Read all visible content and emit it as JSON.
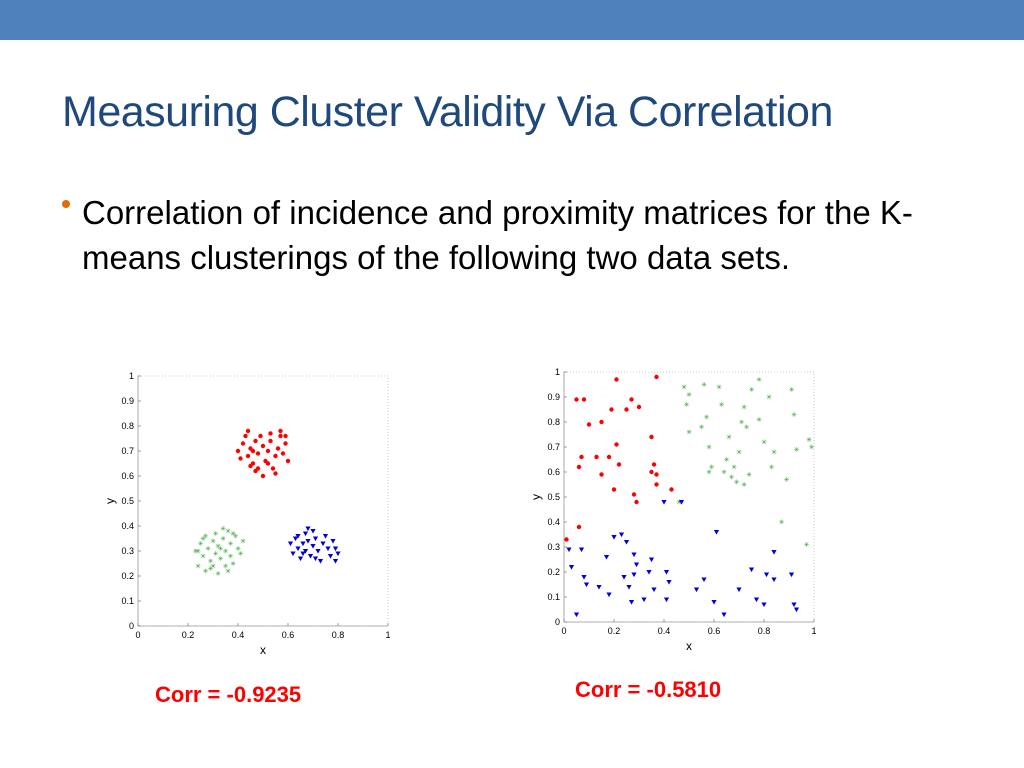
{
  "slide": {
    "title": "Measuring Cluster Validity Via Correlation",
    "bullet": "Correlation of incidence and proximity matrices for the K-means clusterings of the following two data sets.",
    "accent_color": "#4f81bd",
    "title_color": "#1f497d",
    "bullet_color": "#e36c09"
  },
  "chart_data": [
    {
      "type": "scatter",
      "title": "",
      "xlabel": "x",
      "ylabel": "y",
      "xlim": [
        0,
        1
      ],
      "ylim": [
        0,
        1
      ],
      "xticks": [
        "0",
        "0.2",
        "0.4",
        "0.6",
        "0.8",
        "1"
      ],
      "yticks": [
        "0",
        "0.1",
        "0.2",
        "0.3",
        "0.4",
        "0.5",
        "0.6",
        "0.7",
        "0.8",
        "0.9",
        "1"
      ],
      "annotation": "Corr = -0.9235",
      "series": [
        {
          "marker": "dot",
          "color": "#ff0000",
          "points": [
            [
              0.4,
              0.7
            ],
            [
              0.42,
              0.73
            ],
            [
              0.43,
              0.76
            ],
            [
              0.44,
              0.68
            ],
            [
              0.45,
              0.71
            ],
            [
              0.46,
              0.65
            ],
            [
              0.47,
              0.62
            ],
            [
              0.47,
              0.74
            ],
            [
              0.48,
              0.69
            ],
            [
              0.49,
              0.76
            ],
            [
              0.5,
              0.72
            ],
            [
              0.51,
              0.66
            ],
            [
              0.52,
              0.7
            ],
            [
              0.53,
              0.74
            ],
            [
              0.54,
              0.63
            ],
            [
              0.55,
              0.68
            ],
            [
              0.56,
              0.71
            ],
            [
              0.57,
              0.76
            ],
            [
              0.58,
              0.69
            ],
            [
              0.59,
              0.73
            ],
            [
              0.6,
              0.66
            ],
            [
              0.48,
              0.63
            ],
            [
              0.5,
              0.6
            ],
            [
              0.55,
              0.61
            ],
            [
              0.44,
              0.78
            ],
            [
              0.53,
              0.77
            ],
            [
              0.45,
              0.64
            ],
            [
              0.52,
              0.65
            ],
            [
              0.57,
              0.78
            ],
            [
              0.59,
              0.76
            ],
            [
              0.41,
              0.67
            ],
            [
              0.46,
              0.7
            ]
          ]
        },
        {
          "marker": "star",
          "color": "#2e9e2e",
          "points": [
            [
              0.23,
              0.3
            ],
            [
              0.24,
              0.24
            ],
            [
              0.25,
              0.33
            ],
            [
              0.26,
              0.28
            ],
            [
              0.27,
              0.36
            ],
            [
              0.27,
              0.22
            ],
            [
              0.28,
              0.31
            ],
            [
              0.29,
              0.26
            ],
            [
              0.3,
              0.34
            ],
            [
              0.3,
              0.24
            ],
            [
              0.31,
              0.29
            ],
            [
              0.31,
              0.37
            ],
            [
              0.32,
              0.32
            ],
            [
              0.32,
              0.21
            ],
            [
              0.33,
              0.27
            ],
            [
              0.34,
              0.35
            ],
            [
              0.35,
              0.3
            ],
            [
              0.35,
              0.24
            ],
            [
              0.36,
              0.38
            ],
            [
              0.37,
              0.28
            ],
            [
              0.37,
              0.33
            ],
            [
              0.38,
              0.25
            ],
            [
              0.39,
              0.36
            ],
            [
              0.4,
              0.31
            ],
            [
              0.41,
              0.29
            ],
            [
              0.42,
              0.34
            ],
            [
              0.34,
              0.39
            ],
            [
              0.29,
              0.23
            ],
            [
              0.36,
              0.22
            ],
            [
              0.26,
              0.35
            ],
            [
              0.33,
              0.31
            ],
            [
              0.24,
              0.3
            ],
            [
              0.38,
              0.37
            ]
          ]
        },
        {
          "marker": "triangle",
          "color": "#0000dd",
          "points": [
            [
              0.61,
              0.33
            ],
            [
              0.62,
              0.29
            ],
            [
              0.63,
              0.35
            ],
            [
              0.64,
              0.31
            ],
            [
              0.65,
              0.27
            ],
            [
              0.66,
              0.33
            ],
            [
              0.67,
              0.37
            ],
            [
              0.67,
              0.3
            ],
            [
              0.68,
              0.34
            ],
            [
              0.69,
              0.28
            ],
            [
              0.7,
              0.32
            ],
            [
              0.7,
              0.38
            ],
            [
              0.71,
              0.35
            ],
            [
              0.72,
              0.3
            ],
            [
              0.73,
              0.26
            ],
            [
              0.74,
              0.33
            ],
            [
              0.75,
              0.36
            ],
            [
              0.76,
              0.31
            ],
            [
              0.77,
              0.28
            ],
            [
              0.78,
              0.34
            ],
            [
              0.79,
              0.31
            ],
            [
              0.8,
              0.29
            ],
            [
              0.79,
              0.26
            ],
            [
              0.68,
              0.39
            ],
            [
              0.64,
              0.36
            ],
            [
              0.71,
              0.27
            ],
            [
              0.66,
              0.29
            ]
          ]
        }
      ]
    },
    {
      "type": "scatter",
      "title": "",
      "xlabel": "x",
      "ylabel": "y",
      "xlim": [
        0,
        1
      ],
      "ylim": [
        0,
        1
      ],
      "xticks": [
        "0",
        "0.2",
        "0.4",
        "0.6",
        "0.8",
        "1"
      ],
      "yticks": [
        "0",
        "0.1",
        "0.2",
        "0.3",
        "0.4",
        "0.5",
        "0.6",
        "0.7",
        "0.8",
        "0.9",
        "1"
      ],
      "annotation": "Corr = -0.5810",
      "series": [
        {
          "marker": "dot",
          "color": "#ff0000",
          "points": [
            [
              0.01,
              0.33
            ],
            [
              0.05,
              0.89
            ],
            [
              0.06,
              0.38
            ],
            [
              0.06,
              0.62
            ],
            [
              0.07,
              0.66
            ],
            [
              0.08,
              0.89
            ],
            [
              0.1,
              0.79
            ],
            [
              0.13,
              0.66
            ],
            [
              0.15,
              0.8
            ],
            [
              0.15,
              0.59
            ],
            [
              0.18,
              0.66
            ],
            [
              0.19,
              0.85
            ],
            [
              0.2,
              0.53
            ],
            [
              0.21,
              0.71
            ],
            [
              0.21,
              0.97
            ],
            [
              0.22,
              0.63
            ],
            [
              0.25,
              0.85
            ],
            [
              0.27,
              0.89
            ],
            [
              0.28,
              0.51
            ],
            [
              0.29,
              0.48
            ],
            [
              0.3,
              0.86
            ],
            [
              0.35,
              0.74
            ],
            [
              0.36,
              0.63
            ],
            [
              0.37,
              0.59
            ],
            [
              0.37,
              0.55
            ],
            [
              0.37,
              0.98
            ],
            [
              0.43,
              0.53
            ],
            [
              0.35,
              0.6
            ]
          ]
        },
        {
          "marker": "star",
          "color": "#2e9e2e",
          "points": [
            [
              0.46,
              0.48
            ],
            [
              0.48,
              0.94
            ],
            [
              0.49,
              0.87
            ],
            [
              0.5,
              0.91
            ],
            [
              0.5,
              0.76
            ],
            [
              0.55,
              0.78
            ],
            [
              0.56,
              0.95
            ],
            [
              0.57,
              0.82
            ],
            [
              0.58,
              0.6
            ],
            [
              0.59,
              0.62
            ],
            [
              0.62,
              0.94
            ],
            [
              0.63,
              0.87
            ],
            [
              0.64,
              0.6
            ],
            [
              0.65,
              0.65
            ],
            [
              0.66,
              0.74
            ],
            [
              0.67,
              0.58
            ],
            [
              0.68,
              0.62
            ],
            [
              0.69,
              0.56
            ],
            [
              0.7,
              0.68
            ],
            [
              0.71,
              0.8
            ],
            [
              0.72,
              0.86
            ],
            [
              0.73,
              0.78
            ],
            [
              0.74,
              0.59
            ],
            [
              0.75,
              0.93
            ],
            [
              0.78,
              0.81
            ],
            [
              0.78,
              0.97
            ],
            [
              0.8,
              0.72
            ],
            [
              0.82,
              0.9
            ],
            [
              0.83,
              0.62
            ],
            [
              0.84,
              0.68
            ],
            [
              0.87,
              0.4
            ],
            [
              0.89,
              0.57
            ],
            [
              0.91,
              0.93
            ],
            [
              0.92,
              0.83
            ],
            [
              0.93,
              0.69
            ],
            [
              0.97,
              0.31
            ],
            [
              0.98,
              0.73
            ],
            [
              0.99,
              0.7
            ],
            [
              0.72,
              0.55
            ],
            [
              0.58,
              0.7
            ]
          ]
        },
        {
          "marker": "triangle",
          "color": "#0000dd",
          "points": [
            [
              0.02,
              0.29
            ],
            [
              0.03,
              0.22
            ],
            [
              0.05,
              0.03
            ],
            [
              0.07,
              0.29
            ],
            [
              0.08,
              0.18
            ],
            [
              0.09,
              0.15
            ],
            [
              0.14,
              0.14
            ],
            [
              0.18,
              0.11
            ],
            [
              0.2,
              0.34
            ],
            [
              0.23,
              0.35
            ],
            [
              0.24,
              0.18
            ],
            [
              0.25,
              0.32
            ],
            [
              0.26,
              0.14
            ],
            [
              0.27,
              0.08
            ],
            [
              0.28,
              0.19
            ],
            [
              0.28,
              0.27
            ],
            [
              0.29,
              0.23
            ],
            [
              0.32,
              0.09
            ],
            [
              0.34,
              0.2
            ],
            [
              0.36,
              0.13
            ],
            [
              0.4,
              0.48
            ],
            [
              0.41,
              0.09
            ],
            [
              0.41,
              0.2
            ],
            [
              0.42,
              0.16
            ],
            [
              0.47,
              0.48
            ],
            [
              0.53,
              0.13
            ],
            [
              0.56,
              0.17
            ],
            [
              0.6,
              0.08
            ],
            [
              0.61,
              0.36
            ],
            [
              0.64,
              0.03
            ],
            [
              0.75,
              0.21
            ],
            [
              0.77,
              0.09
            ],
            [
              0.8,
              0.07
            ],
            [
              0.81,
              0.19
            ],
            [
              0.84,
              0.28
            ],
            [
              0.91,
              0.19
            ],
            [
              0.92,
              0.07
            ],
            [
              0.93,
              0.05
            ],
            [
              0.7,
              0.13
            ],
            [
              0.84,
              0.17
            ],
            [
              0.17,
              0.26
            ],
            [
              0.35,
              0.25
            ]
          ]
        }
      ]
    }
  ]
}
